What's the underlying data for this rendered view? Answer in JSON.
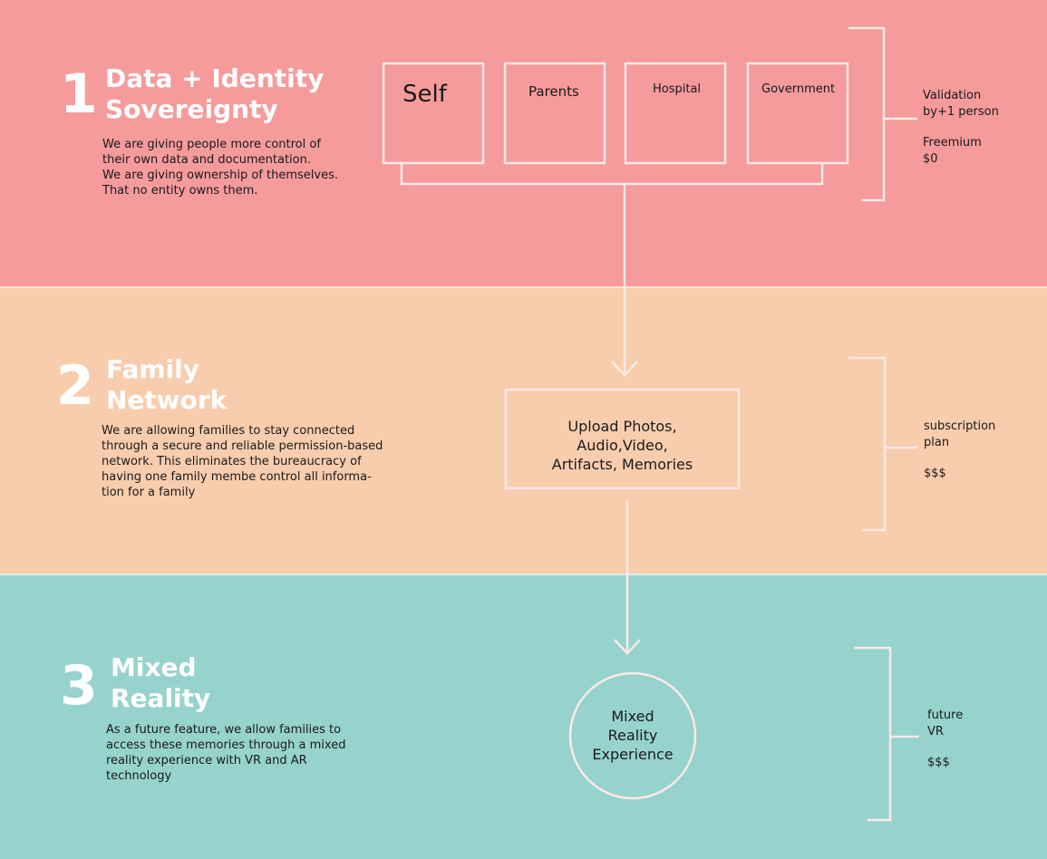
{
  "section1": {
    "number": "1",
    "title_lines": [
      "Data + Identity",
      "Sovereignty"
    ],
    "description_lines": [
      "We are giving people more control of",
      "their own data and documentation.",
      "We are giving ownership of themselves.",
      "That no entity owns them."
    ],
    "boxes": [
      "Self",
      "Parents",
      "Hospital",
      "Government"
    ],
    "side_lines": [
      "Validation",
      "by+1 person",
      "",
      "Freemium",
      "$0"
    ]
  },
  "section2": {
    "number": "2",
    "title_lines": [
      "Family",
      "Network"
    ],
    "description_lines": [
      "We are allowing families to stay connected",
      "through a secure and reliable permission-based",
      "network. This eliminates the bureaucracy of",
      "having one family membe control all informa-",
      "tion for a family"
    ],
    "box_lines": [
      "Upload Photos,",
      "Audio,Video,",
      "Artifacts, Memories"
    ],
    "side_lines": [
      "subscription",
      "plan",
      "",
      "$$$"
    ]
  },
  "section3": {
    "number": "3",
    "title_lines": [
      "Mixed",
      "Reality"
    ],
    "description_lines": [
      "As a future feature, we allow families to",
      "access these memories through a mixed",
      "reality experience with VR and AR",
      "technology"
    ],
    "circle_lines": [
      "Mixed",
      "Reality",
      "Experience"
    ],
    "side_lines": [
      "future",
      "VR",
      "",
      "$$$"
    ]
  },
  "colors": {
    "section1_bg": "#f59b9b",
    "section2_bg": "#f8cdae",
    "section3_bg": "#96d3cc",
    "line": "#fbe9e6"
  }
}
